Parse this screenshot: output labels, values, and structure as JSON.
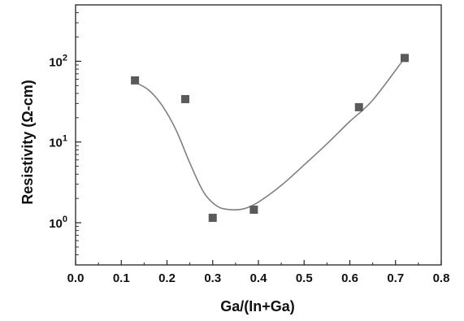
{
  "chart_data": {
    "type": "scatter",
    "xlabel": "Ga/(In+Ga)",
    "ylabel": "Resistivity (Ω-cm)",
    "y_scale": "log",
    "xlim": [
      0.0,
      0.8
    ],
    "ylim": [
      0.3,
      500
    ],
    "x_ticks": [
      0.0,
      0.1,
      0.2,
      0.3,
      0.4,
      0.5,
      0.6,
      0.7,
      0.8
    ],
    "x_tick_labels": [
      "0.0",
      "0.1",
      "0.2",
      "0.3",
      "0.4",
      "0.5",
      "0.6",
      "0.7",
      "0.8"
    ],
    "y_ticks": [
      {
        "value": 1,
        "base": "10",
        "exp": "0"
      },
      {
        "value": 10,
        "base": "10",
        "exp": "1"
      },
      {
        "value": 100,
        "base": "10",
        "exp": "2"
      }
    ],
    "grid": false,
    "legend": "none",
    "series": [
      {
        "marker": "square",
        "color": "#5a5a5a",
        "x": [
          0.13,
          0.24,
          0.3,
          0.39,
          0.62,
          0.72
        ],
        "y": [
          58,
          34,
          1.15,
          1.45,
          27,
          110
        ]
      }
    ],
    "trend_line": {
      "color": "#808080",
      "x": [
        0.13,
        0.16,
        0.19,
        0.22,
        0.25,
        0.28,
        0.31,
        0.34,
        0.37,
        0.4,
        0.45,
        0.5,
        0.55,
        0.6,
        0.65,
        0.72
      ],
      "y": [
        55,
        44,
        28,
        14,
        5.5,
        2.4,
        1.6,
        1.45,
        1.5,
        1.8,
        2.9,
        5.2,
        9.5,
        18,
        33,
        110
      ]
    }
  }
}
